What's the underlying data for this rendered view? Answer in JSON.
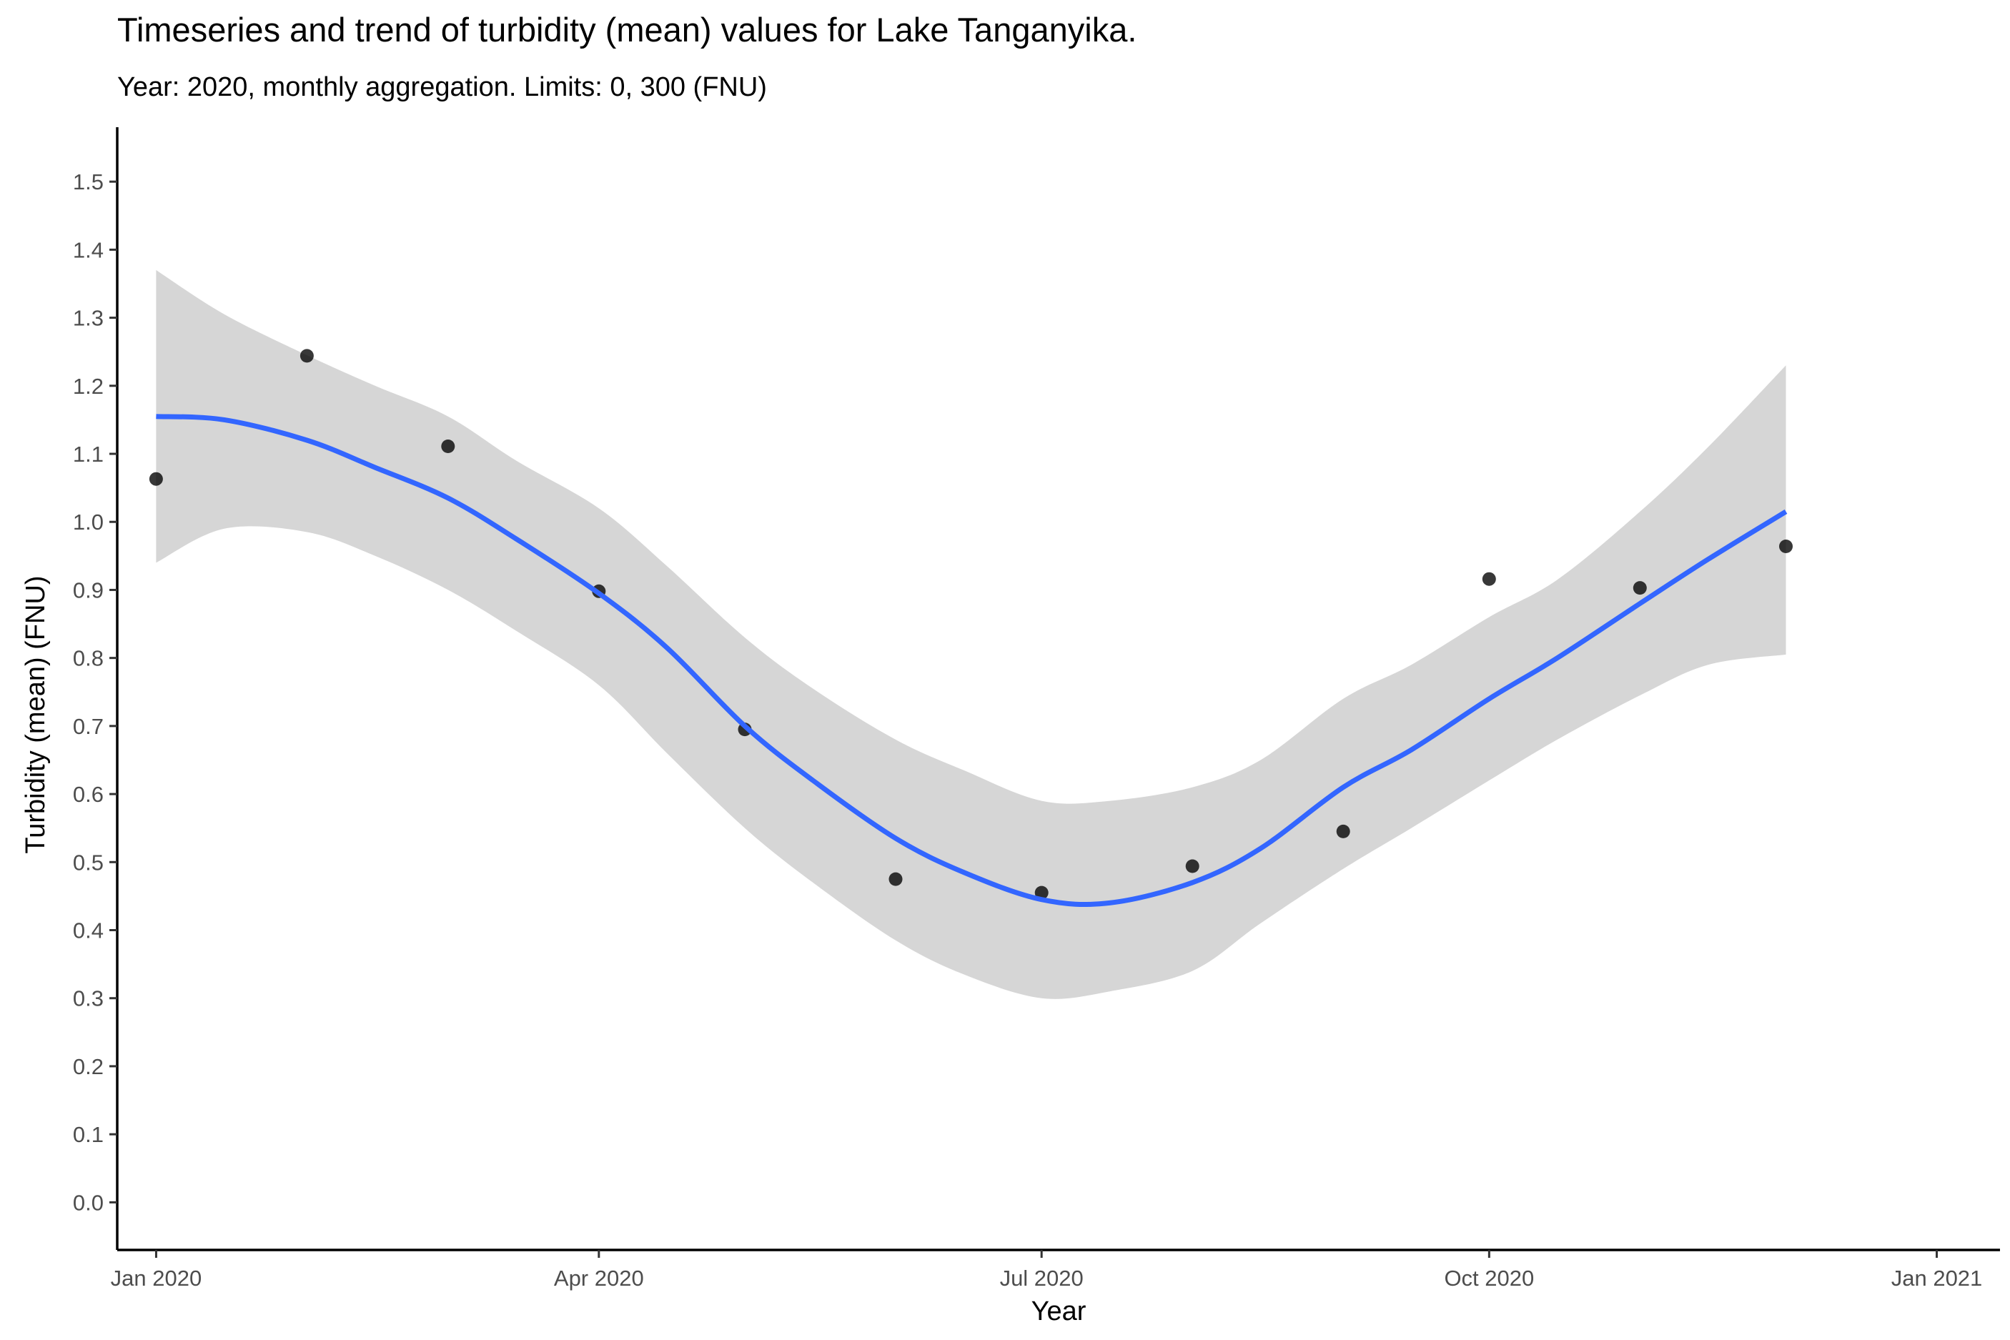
{
  "colors": {
    "trend_line": "#3366FF",
    "confidence_band": "#D6D6D6",
    "points": "#000000",
    "axis": "#000000",
    "tick_labels": "#4d4d4d"
  },
  "chart_data": {
    "type": "scatter",
    "title": "Timeseries and trend of turbidity (mean) values for Lake Tanganyika.",
    "subtitle": "Year: 2020, monthly aggregation. Limits: 0, 300 (FNU)",
    "xlabel": "Year",
    "ylabel": "Turbidity (mean) (FNU)",
    "xlim": [
      "2019-12-24",
      "2021-01-14"
    ],
    "ylim": [
      -0.07,
      1.58
    ],
    "grid": false,
    "x_ticks": [
      {
        "date": "2020-01-01",
        "label": "Jan 2020"
      },
      {
        "date": "2020-04-01",
        "label": "Apr 2020"
      },
      {
        "date": "2020-07-01",
        "label": "Jul 2020"
      },
      {
        "date": "2020-10-01",
        "label": "Oct 2020"
      },
      {
        "date": "2021-01-01",
        "label": "Jan 2021"
      }
    ],
    "y_ticks": [
      {
        "value": 0.0,
        "label": "0.0"
      },
      {
        "value": 0.1,
        "label": "0.1"
      },
      {
        "value": 0.2,
        "label": "0.2"
      },
      {
        "value": 0.3,
        "label": "0.3"
      },
      {
        "value": 0.4,
        "label": "0.4"
      },
      {
        "value": 0.5,
        "label": "0.5"
      },
      {
        "value": 0.6,
        "label": "0.6"
      },
      {
        "value": 0.7,
        "label": "0.7"
      },
      {
        "value": 0.8,
        "label": "0.8"
      },
      {
        "value": 0.9,
        "label": "0.9"
      },
      {
        "value": 1.0,
        "label": "1.0"
      },
      {
        "value": 1.1,
        "label": "1.1"
      },
      {
        "value": 1.2,
        "label": "1.2"
      },
      {
        "value": 1.3,
        "label": "1.3"
      },
      {
        "value": 1.4,
        "label": "1.4"
      },
      {
        "value": 1.5,
        "label": "1.5"
      }
    ],
    "series": [
      {
        "kind": "points",
        "x": [
          "2020-01-01",
          "2020-02-01",
          "2020-03-01",
          "2020-04-01",
          "2020-05-01",
          "2020-06-01",
          "2020-07-01",
          "2020-08-01",
          "2020-09-01",
          "2020-10-01",
          "2020-11-01",
          "2020-12-01"
        ],
        "y": [
          1.063,
          1.244,
          1.111,
          0.898,
          0.695,
          0.475,
          0.455,
          0.494,
          0.545,
          0.916,
          0.903,
          0.964
        ]
      },
      {
        "kind": "trend",
        "x": [
          "2020-01-01",
          "2020-01-15",
          "2020-02-01",
          "2020-02-15",
          "2020-03-01",
          "2020-03-15",
          "2020-04-01",
          "2020-04-15",
          "2020-05-01",
          "2020-05-15",
          "2020-06-01",
          "2020-06-15",
          "2020-07-01",
          "2020-07-15",
          "2020-08-01",
          "2020-08-15",
          "2020-09-01",
          "2020-09-15",
          "2020-10-01",
          "2020-10-15",
          "2020-11-01",
          "2020-11-15",
          "2020-12-01"
        ],
        "y": [
          1.155,
          1.15,
          1.12,
          1.08,
          1.035,
          0.975,
          0.895,
          0.815,
          0.7,
          0.62,
          0.535,
          0.485,
          0.445,
          0.44,
          0.47,
          0.52,
          0.61,
          0.665,
          0.74,
          0.8,
          0.88,
          0.945,
          1.015
        ],
        "lower": [
          0.94,
          0.99,
          0.985,
          0.95,
          0.9,
          0.84,
          0.76,
          0.66,
          0.55,
          0.47,
          0.385,
          0.335,
          0.3,
          0.31,
          0.34,
          0.41,
          0.49,
          0.55,
          0.62,
          0.68,
          0.745,
          0.79,
          0.805
        ],
        "upper": [
          1.37,
          1.305,
          1.245,
          1.2,
          1.155,
          1.09,
          1.02,
          0.935,
          0.83,
          0.755,
          0.68,
          0.635,
          0.59,
          0.59,
          0.61,
          0.65,
          0.74,
          0.79,
          0.86,
          0.915,
          1.015,
          1.11,
          1.23
        ]
      }
    ]
  }
}
